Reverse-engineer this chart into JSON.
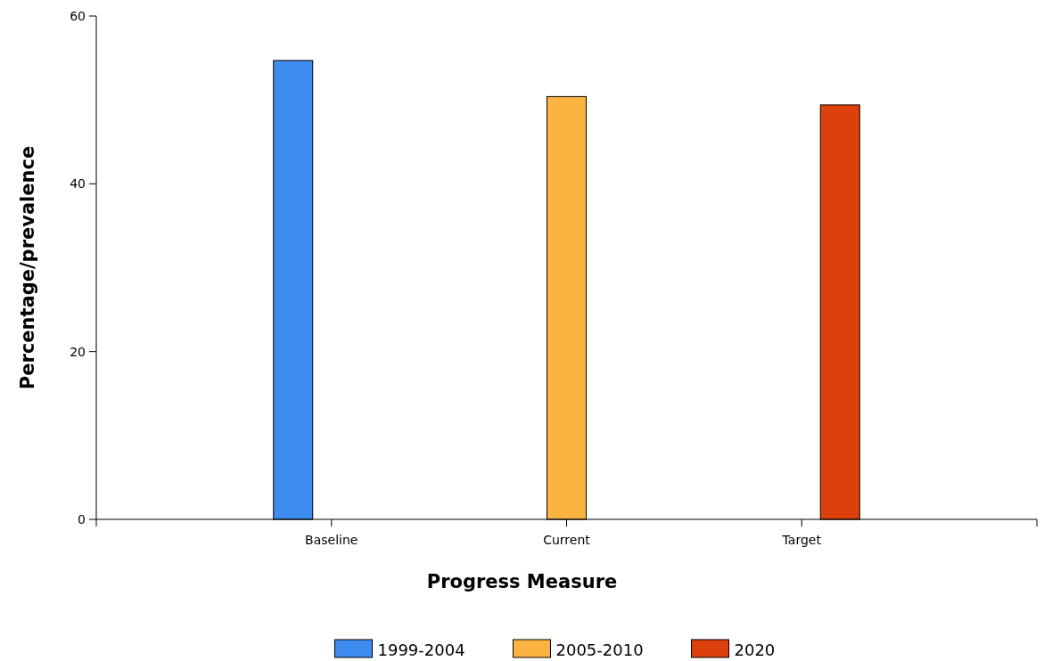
{
  "chart_data": {
    "type": "bar",
    "xlabel": "Progress Measure",
    "ylabel": "Percentage/prevalence",
    "categories": [
      "Baseline",
      "Current",
      "Target"
    ],
    "series": [
      {
        "name": "1999-2004",
        "color": "#3f8cf0",
        "values": [
          54.7,
          null,
          null
        ]
      },
      {
        "name": "2005-2010",
        "color": "#fbb441",
        "values": [
          null,
          50.4,
          null
        ]
      },
      {
        "name": "2020",
        "color": "#de400d",
        "values": [
          null,
          null,
          49.4
        ]
      }
    ],
    "ylim": [
      0,
      60
    ],
    "yticks": [
      0,
      20,
      40,
      60
    ],
    "grid": false,
    "legend": "bottom"
  }
}
